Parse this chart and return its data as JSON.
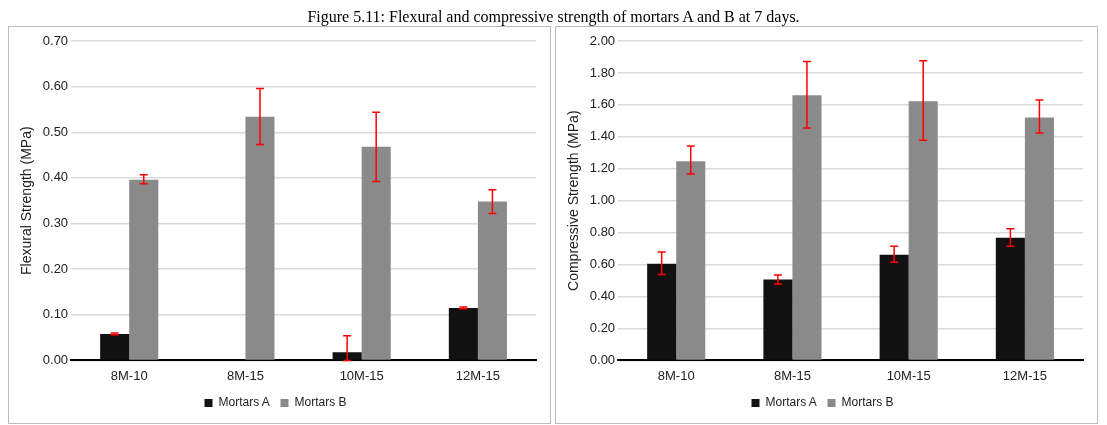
{
  "chart_data": [
    {
      "type": "bar",
      "title": "Figure 5.11: Flexural and compressive strength of mortars A and B at 7 days.",
      "ylabel": "Flexural Strength (MPa)",
      "categories": [
        "8M-10",
        "8M-15",
        "10M-15",
        "12M-15"
      ],
      "series": [
        {
          "name": "Mortars A",
          "color": "#111111",
          "values": [
            0.058,
            null,
            0.018,
            0.115
          ],
          "errors": [
            [
              0.056,
              0.06
            ],
            null,
            [
              0.0,
              0.054
            ],
            [
              0.113,
              0.117
            ]
          ]
        },
        {
          "name": "Mortars B",
          "color": "#8a8a8a",
          "values": [
            0.396,
            0.534,
            0.468,
            0.348
          ],
          "errors": [
            [
              0.387,
              0.407
            ],
            [
              0.473,
              0.596
            ],
            [
              0.392,
              0.544
            ],
            [
              0.322,
              0.374
            ]
          ]
        }
      ],
      "ylim": [
        0,
        0.7
      ],
      "yticks": [
        {
          "value": 0,
          "label": "0.00"
        },
        {
          "value": 0.1,
          "label": "0.10"
        },
        {
          "value": 0.2,
          "label": "0.20"
        },
        {
          "value": 0.3,
          "label": "0.30"
        },
        {
          "value": 0.4,
          "label": "0.40"
        },
        {
          "value": 0.5,
          "label": "0.50"
        },
        {
          "value": 0.6,
          "label": "0.60"
        },
        {
          "value": 0.7,
          "label": "0.70"
        }
      ],
      "grid": "y",
      "legend": "bottom"
    },
    {
      "type": "bar",
      "ylabel": "Compressive Strength (MPa)",
      "categories": [
        "8M-10",
        "8M-15",
        "10M-15",
        "12M-15"
      ],
      "series": [
        {
          "name": "Mortars A",
          "color": "#111111",
          "values": [
            0.605,
            0.506,
            0.662,
            0.768
          ],
          "errors": [
            [
              0.538,
              0.679
            ],
            [
              0.479,
              0.534
            ],
            [
              0.614,
              0.715
            ],
            [
              0.715,
              0.825
            ]
          ]
        },
        {
          "name": "Mortars B",
          "color": "#8a8a8a",
          "values": [
            1.247,
            1.66,
            1.622,
            1.521
          ],
          "errors": [
            [
              1.167,
              1.342
            ],
            [
              1.456,
              1.871
            ],
            [
              1.378,
              1.876
            ],
            [
              1.424,
              1.631
            ]
          ]
        }
      ],
      "ylim": [
        0,
        2
      ],
      "yticks": [
        {
          "value": 0,
          "label": "0.00"
        },
        {
          "value": 0.2,
          "label": "0.20"
        },
        {
          "value": 0.4,
          "label": "0.40"
        },
        {
          "value": 0.6,
          "label": "0.60"
        },
        {
          "value": 0.8,
          "label": "0.80"
        },
        {
          "value": 1,
          "label": "1.00"
        },
        {
          "value": 1.2,
          "label": "1.20"
        },
        {
          "value": 1.4,
          "label": "1.40"
        },
        {
          "value": 1.6,
          "label": "1.60"
        },
        {
          "value": 1.8,
          "label": "1.80"
        },
        {
          "value": 2,
          "label": "2.00"
        }
      ],
      "grid": "y",
      "legend": "bottom"
    }
  ]
}
